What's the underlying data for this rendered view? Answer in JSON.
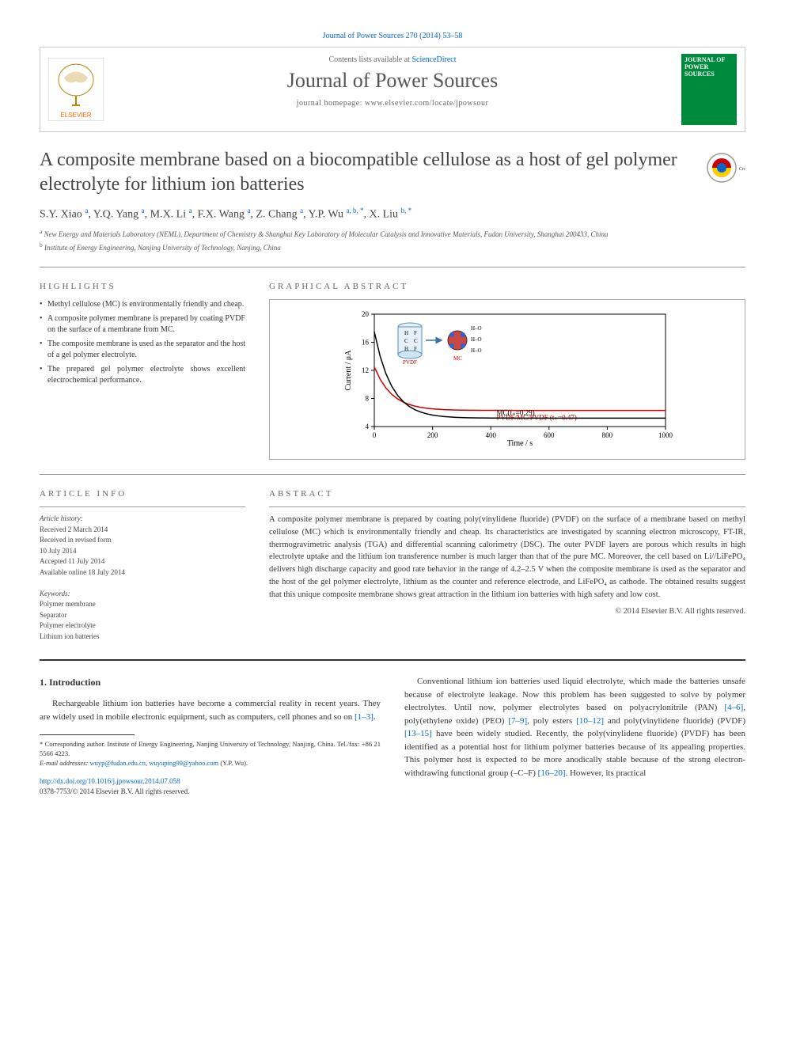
{
  "top_ref": {
    "journal": "Journal of Power Sources 270 (2014) 53–58",
    "url_text": "Journal of Power Sources 270 (2014) 53–58"
  },
  "header": {
    "sd_prefix": "Contents lists available at ",
    "sd_link": "ScienceDirect",
    "journal_name": "Journal of Power Sources",
    "homepage_label": "journal homepage: ",
    "homepage_url": "www.elsevier.com/locate/jpowsour",
    "elsevier_label": "ELSEVIER",
    "cover_line1": "JOURNAL OF",
    "cover_line2": "POWER SOURCES"
  },
  "article": {
    "title": "A composite membrane based on a biocompatible cellulose as a host of gel polymer electrolyte for lithium ion batteries",
    "crossmark_label": "CrossMark"
  },
  "authors_html": "S.Y. Xiao <sup>a</sup>, Y.Q. Yang <sup>a</sup>, M.X. Li <sup>a</sup>, F.X. Wang <sup>a</sup>, Z. Chang <sup>a</sup>, Y.P. Wu <sup>a, b, *</sup>, X. Liu <sup>b, *</sup>",
  "affiliations": [
    {
      "sup": "a",
      "text": "New Energy and Materials Laboratory (NEML), Department of Chemistry & Shanghai Key Laboratory of Molecular Catalysis and Innovative Materials, Fudan University, Shanghai 200433, China"
    },
    {
      "sup": "b",
      "text": "Institute of Energy Engineering, Nanjing University of Technology, Nanjing, China"
    }
  ],
  "highlights_head": "highlights",
  "highlights": [
    "Methyl cellulose (MC) is environmentally friendly and cheap.",
    "A composite polymer membrane is prepared by coating PVDF on the surface of a membrane from MC.",
    "The composite membrane is used as the separator and the host of a gel polymer electrolyte.",
    "The prepared gel polymer electrolyte shows excellent electrochemical performance."
  ],
  "ga_head": "graphical abstract",
  "ga_chart": {
    "xlabel": "Time / s",
    "ylabel": "Current / μA",
    "xlim": [
      0,
      1000
    ],
    "ylim": [
      4,
      20
    ],
    "xticks": [
      0,
      200,
      400,
      600,
      800,
      1000
    ],
    "yticks": [
      4,
      8,
      12,
      16,
      20
    ],
    "series": [
      {
        "label": "PVDF/MC/PVDF (t₊=0.47)",
        "color": "#cc0000",
        "y0": 12.5,
        "decay": 6.3
      },
      {
        "label": "MC(t₊=0.29)",
        "color": "#000000",
        "y0": 17.5,
        "decay": 5.2
      }
    ],
    "inset_labels": [
      "H",
      "F",
      "C",
      "F",
      "H",
      "PVDF",
      "MC",
      "H–O",
      "H–O",
      "H–O"
    ],
    "background": "#ffffff",
    "axis_color": "#000000",
    "font_size": 9
  },
  "artinfo_head": "article info",
  "artinfo": {
    "hist_label": "Article history:",
    "hist": [
      "Received 2 March 2014",
      "Received in revised form",
      "10 July 2014",
      "Accepted 11 July 2014",
      "Available online 18 July 2014"
    ],
    "kw_label": "Keywords:",
    "keywords": [
      "Polymer membrane",
      "Separator",
      "Polymer electrolyte",
      "Lithium ion batteries"
    ]
  },
  "abstract_head": "abstract",
  "abstract": "A composite polymer membrane is prepared by coating poly(vinylidene fluoride) (PVDF) on the surface of a membrane based on methyl cellulose (MC) which is environmentally friendly and cheap. Its characteristics are investigated by scanning electron microscopy, FT-IR, thermogravimetric analysis (TGA) and differential scanning calorimetry (DSC). The outer PVDF layers are porous which results in high electrolyte uptake and the lithium ion transference number is much larger than that of the pure MC. Moreover, the cell based on Li//LiFePO₄ delivers high discharge capacity and good rate behavior in the range of 4.2–2.5 V when the composite membrane is used as the separator and the host of the gel polymer electrolyte, lithium as the counter and reference electrode, and LiFePO₄ as cathode. The obtained results suggest that this unique composite membrane shows great attraction in the lithium ion batteries with high safety and low cost.",
  "copyright": "© 2014 Elsevier B.V. All rights reserved.",
  "intro": {
    "head": "1. Introduction",
    "col1": "Rechargeable lithium ion batteries have become a commercial reality in recent years. They are widely used in mobile electronic equipment, such as computers, cell phones and so on ",
    "ref1": "[1–3]",
    "col1_end": ".",
    "col2_a": "Conventional lithium ion batteries used liquid electrolyte, which made the batteries unsafe because of electrolyte leakage. Now this problem has been suggested to solve by polymer electrolytes. Until now, polymer electrolytes based on polyacrylonitrile (PAN) ",
    "ref2": "[4–6]",
    "col2_b": ", poly(ethylene oxide) (PEO) ",
    "ref3": "[7–9]",
    "col2_c": ", poly esters ",
    "ref4": "[10–12]",
    "col2_d": " and poly(vinylidene fluoride) (PVDF) ",
    "ref5": "[13–15]",
    "col2_e": " have been widely studied. Recently, the poly(vinylidene fluoride) (PVDF) has been identified as a potential host for lithium polymer batteries because of its appealing properties. This polymer host is expected to be more anodically stable because of the strong electron-withdrawing functional group (–C–F) ",
    "ref6": "[16–20]",
    "col2_f": ". However, its practical"
  },
  "footnote": {
    "corr": "* Corresponding author. Institute of Energy Engineering, Nanjing University of Technology, Nanjing, China. Tel./fax: +86 21 5566 4223.",
    "email_label": "E-mail addresses: ",
    "email1": "wuyp@fudan.edu.cn",
    "email_sep": ", ",
    "email2": "wuyuping99@yahoo.com",
    "email_who": " (Y.P. Wu)."
  },
  "doi": {
    "url": "http://dx.doi.org/10.1016/j.jpowsour.2014.07.058",
    "issn": "0378-7753/© 2014 Elsevier B.V. All rights reserved."
  }
}
